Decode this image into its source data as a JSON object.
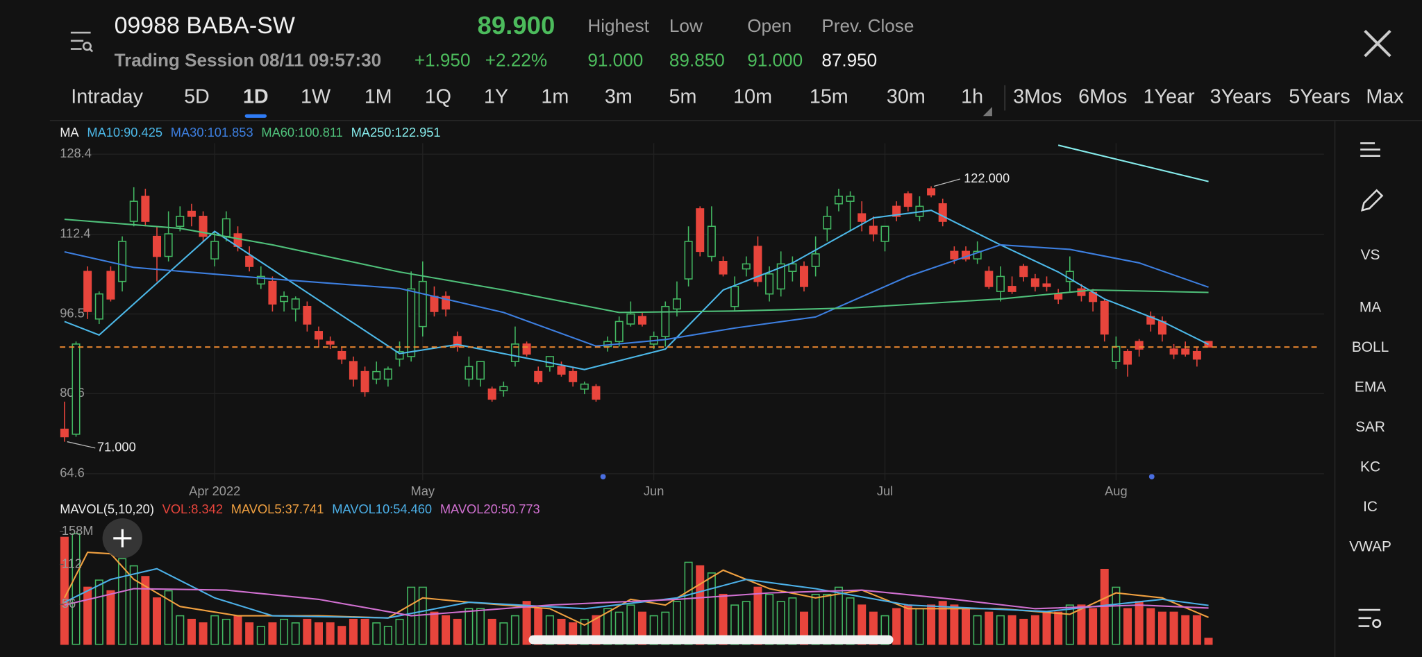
{
  "header": {
    "symbol": "09988 BABA-SW",
    "price": "89.900",
    "session": "Trading Session 08/11 09:57:30",
    "change": "+1.950",
    "change_pct": "+2.22%",
    "stats": [
      {
        "label": "Highest",
        "value": "91.000"
      },
      {
        "label": "Low",
        "value": "89.850"
      },
      {
        "label": "Open",
        "value": "91.000"
      },
      {
        "label": "Prev. Close",
        "value": "87.950"
      }
    ]
  },
  "tabs": [
    "Intraday",
    "5D",
    "1D",
    "1W",
    "1M",
    "1Q",
    "1Y",
    "1m",
    "3m",
    "5m",
    "10m",
    "15m",
    "30m",
    "1h",
    "3Mos",
    "6Mos",
    "1Year",
    "3Years",
    "5Years",
    "Max"
  ],
  "active_tab": 2,
  "side_tools": [
    "VS",
    "MA",
    "BOLL",
    "EMA",
    "SAR",
    "KC",
    "IC",
    "VWAP"
  ],
  "active_tool": 1,
  "chart_data": [
    {
      "type": "candlestick",
      "indicator": "MA",
      "up_color": "#43b862",
      "down_color": "#e8453c",
      "grid": true,
      "xlim": [
        -0.4,
        109
      ],
      "xticks": [
        {
          "value": 13,
          "label": "Apr 2022"
        },
        {
          "value": 31,
          "label": "May"
        },
        {
          "value": 51,
          "label": "Jun"
        },
        {
          "value": 71,
          "label": "Jul"
        },
        {
          "value": 91,
          "label": "Aug"
        }
      ],
      "ylim": [
        63.3,
        130.6
      ],
      "yticks": [
        128.4,
        112.4,
        96.5,
        80.6,
        64.6
      ],
      "last_price": 89.9,
      "last_price_color": "#f08a30",
      "high_label": {
        "value": 122,
        "label": "122.000"
      },
      "low_label": {
        "value": 71,
        "label": "71.000"
      },
      "ohlc": [
        [
          73.5,
          79,
          71,
          72
        ],
        [
          72.5,
          91,
          72,
          90.5
        ],
        [
          105,
          106,
          95.5,
          97
        ],
        [
          95.5,
          101,
          94.5,
          100.5
        ],
        [
          105,
          106,
          99,
          99.5
        ],
        [
          103,
          112,
          101,
          111
        ],
        [
          115,
          121.8,
          114,
          119
        ],
        [
          120,
          121.5,
          114,
          115
        ],
        [
          112,
          114,
          103,
          108
        ],
        [
          108,
          117,
          107,
          112.5
        ],
        [
          114,
          118,
          113,
          116
        ],
        [
          117,
          118.5,
          114,
          116
        ],
        [
          116,
          117,
          111,
          112
        ],
        [
          107.5,
          113,
          106,
          111
        ],
        [
          112,
          117,
          111,
          115.5
        ],
        [
          112.5,
          114,
          109,
          110
        ],
        [
          108,
          110,
          105,
          106
        ],
        [
          102.5,
          106,
          101.5,
          104
        ],
        [
          103,
          104,
          97,
          98.5
        ],
        [
          99,
          101,
          97,
          100
        ],
        [
          97.5,
          100,
          95,
          99.5
        ],
        [
          98,
          99,
          93,
          94.5
        ],
        [
          93,
          94,
          90,
          91.5
        ],
        [
          91,
          92,
          89.5,
          90.5
        ],
        [
          89,
          90,
          86.5,
          87.5
        ],
        [
          87,
          88,
          82,
          83.5
        ],
        [
          85,
          86,
          80,
          81
        ],
        [
          83.5,
          87,
          82.5,
          85
        ],
        [
          83.5,
          86,
          82,
          85.5
        ],
        [
          87.5,
          91,
          86,
          89
        ],
        [
          88,
          105,
          87,
          101.5
        ],
        [
          94,
          107,
          92,
          103
        ],
        [
          100,
          102,
          96,
          97
        ],
        [
          100,
          101,
          96,
          97.5
        ],
        [
          92,
          93,
          89,
          90
        ],
        [
          83.5,
          88,
          82,
          86
        ],
        [
          83.5,
          87,
          82,
          87
        ],
        [
          81.5,
          82,
          79,
          79.5
        ],
        [
          81.2,
          83,
          80,
          82
        ],
        [
          87,
          94,
          86,
          90.5
        ],
        [
          90.5,
          91,
          88,
          88.5
        ],
        [
          85,
          86,
          82.5,
          83
        ],
        [
          86,
          88,
          85,
          88
        ],
        [
          86,
          87,
          84,
          84.5
        ],
        [
          85,
          86,
          82,
          83
        ],
        [
          81.5,
          83,
          80.5,
          82.5
        ],
        [
          82,
          82.5,
          79,
          79.5
        ],
        [
          90,
          92,
          89,
          91
        ],
        [
          91,
          96,
          90,
          95
        ],
        [
          94.5,
          99,
          94,
          96.5
        ],
        [
          96,
          97,
          94,
          94.5
        ],
        [
          90.5,
          93,
          89.5,
          92
        ],
        [
          92,
          99,
          90,
          98
        ],
        [
          97.5,
          103,
          96,
          99.5
        ],
        [
          103.5,
          114,
          102,
          111
        ],
        [
          117.5,
          118,
          108,
          109
        ],
        [
          108,
          118,
          107,
          114
        ],
        [
          107,
          108,
          104,
          104.5
        ],
        [
          98,
          104,
          97,
          102
        ],
        [
          105.5,
          108,
          104,
          106.5
        ],
        [
          110,
          112,
          102,
          103
        ],
        [
          100.5,
          106,
          99,
          104.5
        ],
        [
          101.5,
          109,
          100,
          106.5
        ],
        [
          105,
          108,
          103,
          106.5
        ],
        [
          106,
          107,
          101,
          102
        ],
        [
          106,
          112,
          104,
          108.5
        ],
        [
          113.5,
          118,
          111,
          116
        ],
        [
          118.5,
          121.5,
          117,
          120
        ],
        [
          119,
          121,
          113,
          120
        ],
        [
          116.5,
          119,
          113,
          115
        ],
        [
          114,
          116,
          111,
          112.5
        ],
        [
          111,
          114,
          109,
          114
        ],
        [
          118,
          119,
          115,
          116
        ],
        [
          120.5,
          121,
          117,
          118
        ],
        [
          116,
          120,
          115,
          118
        ],
        [
          121.5,
          122,
          119.8,
          120.3
        ],
        [
          118.5,
          119.5,
          114,
          115
        ],
        [
          109,
          110,
          106.5,
          107.5
        ],
        [
          109,
          110,
          107,
          107.5
        ],
        [
          107.5,
          111,
          106.5,
          109
        ],
        [
          105,
          106,
          101.5,
          102
        ],
        [
          101,
          106,
          99,
          104
        ],
        [
          102,
          104,
          100.5,
          101
        ],
        [
          106,
          106.5,
          103,
          104
        ],
        [
          103.5,
          104.5,
          101,
          102
        ],
        [
          102.5,
          104,
          101,
          102
        ],
        [
          100.5,
          101.5,
          98.5,
          99.5
        ],
        [
          103,
          108,
          101,
          105
        ],
        [
          101.5,
          102.5,
          99,
          100.2
        ],
        [
          100.8,
          101.5,
          97,
          99
        ],
        [
          99,
          99.5,
          91,
          92.5
        ],
        [
          87,
          92,
          85.5,
          90
        ],
        [
          89,
          89.5,
          84,
          86.5
        ],
        [
          91,
          91.5,
          88,
          89.5
        ],
        [
          96,
          97,
          93,
          94.5
        ],
        [
          95,
          96,
          91,
          92.5
        ],
        [
          89.5,
          90.5,
          87.5,
          88.5
        ],
        [
          89.5,
          91,
          88,
          88.5
        ],
        [
          89,
          90,
          86,
          87.5
        ],
        [
          91,
          91,
          89.85,
          89.9
        ]
      ],
      "lines": [
        {
          "name": "MA10:90.425",
          "color": "#4cb8e8",
          "x": [
            0,
            3,
            13,
            29,
            34,
            45,
            52,
            57,
            63,
            70,
            75,
            81,
            86,
            90,
            95,
            99
          ],
          "values": [
            95,
            92.3,
            113,
            88.6,
            90.4,
            85.4,
            89.5,
            101.3,
            106.7,
            115.7,
            117.2,
            110.3,
            104.9,
            99.5,
            95,
            90.425
          ]
        },
        {
          "name": "MA30:101.853",
          "color": "#3d7fe0",
          "x": [
            0,
            6,
            18,
            29,
            38,
            46,
            52,
            58,
            65,
            73,
            81,
            87,
            93,
            99
          ],
          "values": [
            108.9,
            105.8,
            103.5,
            101.6,
            96.8,
            90.1,
            91.4,
            93.7,
            95.9,
            104,
            110.3,
            109.4,
            106.7,
            101.853
          ]
        },
        {
          "name": "MA60:100.811",
          "color": "#4fc07a",
          "x": [
            0,
            10,
            18,
            29,
            38,
            48,
            58,
            68,
            81,
            89,
            99
          ],
          "values": [
            115.4,
            113.6,
            110.3,
            104.9,
            101.3,
            96.8,
            97.1,
            97.7,
            99.5,
            101.3,
            100.811
          ]
        },
        {
          "name": "MA250:122.951",
          "color": "#86ecec",
          "x": [
            86,
            99
          ],
          "values": [
            130.2,
            122.951
          ]
        }
      ]
    },
    {
      "type": "bar",
      "title": "MAVOL(5,10,20)",
      "vol_label": "VOL:8.342",
      "vol_label_color": "#e8453c",
      "xlim": [
        -0.4,
        109
      ],
      "ylim": [
        0,
        169
      ],
      "yticks": [
        {
          "value": 158,
          "label": "158M"
        },
        112,
        56
      ],
      "values": [
        150,
        155,
        80,
        90,
        75,
        120,
        110,
        95,
        65,
        75,
        40,
        35,
        30,
        40,
        35,
        40,
        30,
        25,
        30,
        35,
        30,
        35,
        30,
        30,
        25,
        35,
        35,
        30,
        25,
        35,
        80,
        80,
        45,
        40,
        35,
        50,
        50,
        35,
        30,
        40,
        60,
        50,
        40,
        35,
        30,
        35,
        40,
        50,
        45,
        55,
        45,
        40,
        45,
        60,
        115,
        110,
        100,
        70,
        55,
        60,
        80,
        70,
        60,
        65,
        45,
        70,
        70,
        80,
        65,
        55,
        45,
        40,
        50,
        55,
        50,
        55,
        60,
        55,
        50,
        40,
        45,
        40,
        40,
        35,
        40,
        45,
        45,
        55,
        55,
        50,
        105,
        80,
        50,
        60,
        50,
        45,
        45,
        40,
        40,
        8.342
      ],
      "lines": [
        {
          "name": "MAVOL5:37.741",
          "color": "#f0a040",
          "x": [
            0,
            2,
            4,
            6,
            10,
            15,
            22,
            28,
            31,
            35,
            42,
            45,
            49,
            52,
            57,
            61,
            65,
            69,
            73,
            81,
            87,
            91,
            95,
            99
          ],
          "values": [
            65,
            129,
            127,
            91,
            53,
            40,
            40,
            37,
            65,
            59,
            50,
            27,
            63,
            55,
            104,
            78,
            65,
            76,
            50,
            50,
            42,
            72,
            65,
            37.741
          ]
        },
        {
          "name": "MAVOL10:54.460",
          "color": "#4cb0e8",
          "x": [
            0,
            4,
            8,
            13,
            18,
            28,
            35,
            45,
            53,
            59,
            65,
            73,
            85,
            95,
            99
          ],
          "values": [
            59,
            91,
            106,
            65,
            40,
            37,
            59,
            50,
            65,
            91,
            78,
            55,
            46,
            63,
            54.46
          ]
        },
        {
          "name": "MAVOL20:50.773",
          "color": "#d070d0",
          "x": [
            0,
            6,
            14,
            22,
            30,
            42,
            53,
            61,
            69,
            77,
            84,
            93,
            99
          ],
          "values": [
            55,
            78,
            76,
            63,
            40,
            55,
            63,
            72,
            76,
            63,
            50,
            55,
            50.773
          ]
        }
      ]
    }
  ]
}
